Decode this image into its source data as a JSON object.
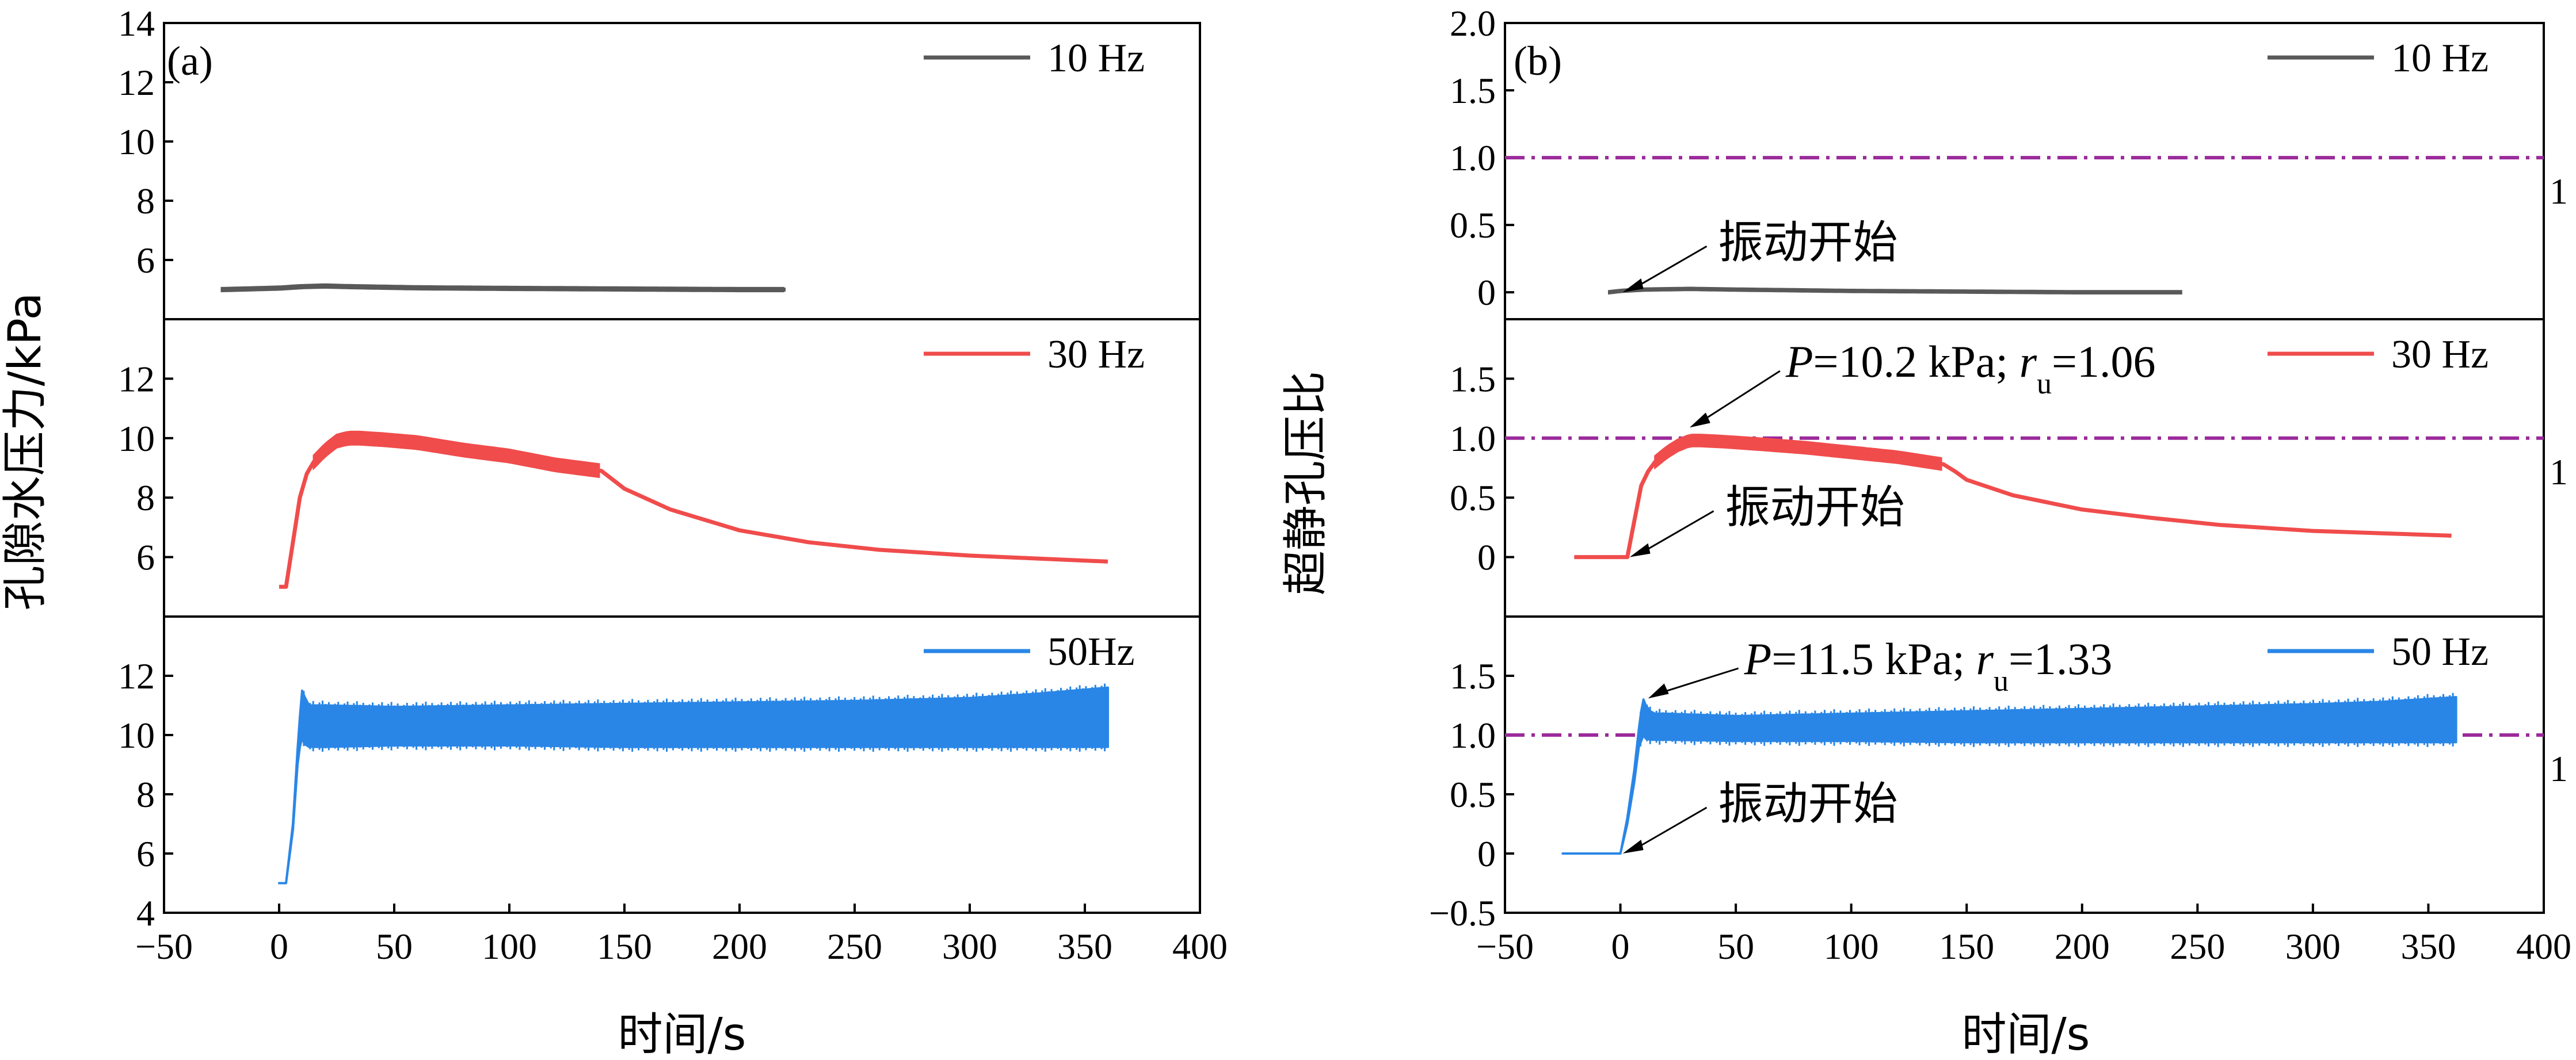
{
  "colors": {
    "10Hz": "#595959",
    "30Hz": "#f04c4c",
    "50Hz": "#2a86e6",
    "ref": "#9b2a9b",
    "axis": "#000000"
  },
  "chart_data": [
    {
      "type": "line",
      "panel": "(a)",
      "title": "",
      "xlabel": "时间/s",
      "ylabel": "孔隙水压力/kPa",
      "xlim": [
        -50,
        400
      ],
      "x_ticks": [
        "−50",
        "0",
        "50",
        "100",
        "150",
        "200",
        "250",
        "300",
        "350",
        "400"
      ],
      "x_tick_values": [
        -50,
        0,
        50,
        100,
        150,
        200,
        250,
        300,
        350,
        400
      ],
      "subplots": [
        {
          "legend": "10 Hz",
          "series_key": "10Hz",
          "ylim": [
            4,
            14
          ],
          "y_ticks": [
            "6",
            "8",
            "10",
            "12",
            "14"
          ],
          "y_tick_values": [
            6,
            8,
            10,
            12,
            14
          ],
          "series": [
            {
              "name": "10 Hz",
              "x": [
                -25,
                0,
                10,
                20,
                30,
                60,
                100,
                150,
                200,
                220
              ],
              "y": [
                5.0,
                5.05,
                5.1,
                5.12,
                5.1,
                5.06,
                5.04,
                5.02,
                5.0,
                5.0
              ],
              "band": 0.06
            }
          ]
        },
        {
          "legend": "30 Hz",
          "series_key": "30Hz",
          "ylim": [
            4,
            14
          ],
          "y_ticks": [
            "6",
            "8",
            "10",
            "12"
          ],
          "y_tick_values": [
            6,
            8,
            10,
            12
          ],
          "series": [
            {
              "name": "30 Hz",
              "x": [
                0,
                3,
                6,
                9,
                12,
                15,
                20,
                25,
                30,
                35,
                45,
                60,
                80,
                100,
                120,
                140,
                145,
                150,
                170,
                200,
                230,
                260,
                300,
                330,
                360
              ],
              "y": [
                5.0,
                5.0,
                6.5,
                8.0,
                8.8,
                9.2,
                9.6,
                9.9,
                10.0,
                10.0,
                9.95,
                9.85,
                9.6,
                9.4,
                9.1,
                8.9,
                8.6,
                8.3,
                7.6,
                6.9,
                6.5,
                6.25,
                6.05,
                5.95,
                5.85
              ],
              "band_until": 140,
              "band": 0.22
            }
          ]
        },
        {
          "legend": "50Hz",
          "series_key": "50Hz",
          "ylim": [
            4,
            14
          ],
          "y_ticks": [
            "4",
            "6",
            "8",
            "10",
            "12"
          ],
          "y_tick_values": [
            4,
            6,
            8,
            10,
            12
          ],
          "series": [
            {
              "name": "50Hz",
              "x": [
                0,
                3,
                6,
                8,
                9,
                10,
                11,
                13,
                15,
                20,
                50,
                100,
                150,
                200,
                250,
                300,
                330,
                360
              ],
              "y_upper": [
                5.0,
                5.0,
                7.0,
                9.5,
                10.6,
                11.5,
                11.3,
                11.0,
                11.0,
                11.0,
                10.95,
                11.0,
                11.05,
                11.1,
                11.15,
                11.25,
                11.4,
                11.6
              ],
              "y_lower": [
                5.0,
                5.0,
                6.8,
                9.0,
                9.6,
                9.9,
                9.7,
                9.6,
                9.6,
                9.6,
                9.65,
                9.65,
                9.6,
                9.6,
                9.6,
                9.6,
                9.6,
                9.6
              ]
            }
          ]
        }
      ]
    },
    {
      "type": "line",
      "panel": "(b)",
      "title": "",
      "xlabel": "时间/s",
      "ylabel": "超静孔压比",
      "xlim": [
        -50,
        400
      ],
      "x_ticks": [
        "−50",
        "0",
        "50",
        "100",
        "150",
        "200",
        "250",
        "300",
        "350",
        "400"
      ],
      "x_tick_values": [
        -50,
        0,
        50,
        100,
        150,
        200,
        250,
        300,
        350,
        400
      ],
      "reference_line": {
        "y": 1.0,
        "label": "1"
      },
      "subplots": [
        {
          "legend": "10 Hz",
          "series_key": "10Hz",
          "ylim": [
            -0.2,
            2.0
          ],
          "y_ticks": [
            "0",
            "0.5",
            "1.0",
            "1.5",
            "2.0"
          ],
          "y_tick_values": [
            0,
            0.5,
            1.0,
            1.5,
            2.0
          ],
          "annotations": [
            {
              "text": "振动开始",
              "x": 0,
              "y": 0
            }
          ],
          "series": [
            {
              "name": "10 Hz",
              "x": [
                -5,
                0,
                10,
                30,
                50,
                100,
                150,
                200,
                243
              ],
              "y": [
                0.0,
                0.01,
                0.02,
                0.025,
                0.02,
                0.01,
                0.005,
                0.0,
                0.0
              ],
              "band": 0.01
            }
          ]
        },
        {
          "legend": "30 Hz",
          "series_key": "30Hz",
          "ylim": [
            -0.5,
            2.0
          ],
          "y_ticks": [
            "0",
            "0.5",
            "1.0",
            "1.5"
          ],
          "y_tick_values": [
            0,
            0.5,
            1.0,
            1.5
          ],
          "annotations": [
            {
              "text": "振动开始",
              "x": 3,
              "y": 0
            },
            {
              "peak": {
                "P_label": "P",
                "P_text": "=10.2 kPa; ",
                "r_label": "r",
                "r_sub": "u",
                "r_text": "=1.06",
                "x": 28,
                "y": 1.06
              }
            }
          ],
          "series": [
            {
              "name": "30 Hz",
              "x": [
                -20,
                0,
                3,
                6,
                9,
                12,
                15,
                20,
                25,
                30,
                35,
                45,
                60,
                80,
                100,
                120,
                140,
                145,
                150,
                170,
                200,
                230,
                260,
                300,
                330,
                360
              ],
              "y": [
                0.0,
                0.0,
                0.0,
                0.3,
                0.6,
                0.72,
                0.8,
                0.88,
                0.94,
                0.98,
                0.98,
                0.97,
                0.95,
                0.92,
                0.88,
                0.84,
                0.78,
                0.72,
                0.65,
                0.52,
                0.4,
                0.33,
                0.27,
                0.22,
                0.2,
                0.18
              ],
              "band_until": 140,
              "band": 0.05
            }
          ]
        },
        {
          "legend": "50 Hz",
          "series_key": "50Hz",
          "ylim": [
            -0.5,
            2.0
          ],
          "y_ticks": [
            "−0.5",
            "0",
            "0.5",
            "1.0",
            "1.5"
          ],
          "y_tick_values": [
            -0.5,
            0,
            0.5,
            1.0,
            1.5
          ],
          "annotations": [
            {
              "text": "振动开始",
              "x": 0,
              "y": 0
            },
            {
              "peak": {
                "P_label": "P",
                "P_text": "=11.5 kPa; ",
                "r_label": "r",
                "r_sub": "u",
                "r_text": "=1.33",
                "x": 10,
                "y": 1.28
              }
            }
          ],
          "series": [
            {
              "name": "50 Hz",
              "x": [
                -25,
                0,
                3,
                6,
                8,
                9,
                10,
                11,
                13,
                15,
                20,
                50,
                100,
                150,
                200,
                250,
                300,
                330,
                362
              ],
              "y_upper": [
                0.0,
                0.0,
                0.3,
                0.7,
                1.05,
                1.2,
                1.3,
                1.25,
                1.2,
                1.18,
                1.18,
                1.16,
                1.18,
                1.2,
                1.22,
                1.24,
                1.26,
                1.28,
                1.32
              ],
              "y_lower": [
                0.0,
                0.0,
                0.25,
                0.6,
                0.9,
                0.95,
                1.0,
                0.97,
                0.96,
                0.96,
                0.96,
                0.95,
                0.95,
                0.94,
                0.94,
                0.94,
                0.94,
                0.94,
                0.94
              ]
            }
          ]
        }
      ]
    }
  ]
}
